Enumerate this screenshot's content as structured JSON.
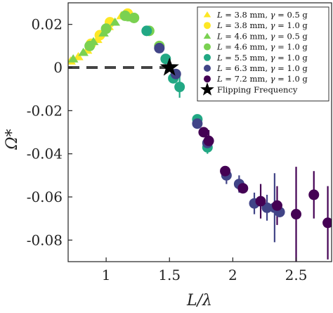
{
  "chart_data": {
    "type": "scatter",
    "title": "",
    "xlabel": "L/λ",
    "ylabel": "Ω*",
    "xlim": [
      0.7,
      2.78
    ],
    "ylim": [
      -0.09,
      0.03
    ],
    "xticks": [
      1,
      1.5,
      2,
      2.5
    ],
    "xtick_labels": [
      "1",
      "1.5",
      "2",
      "2.5"
    ],
    "yticks": [
      0.02,
      0,
      -0.02,
      -0.04,
      -0.06,
      -0.08
    ],
    "ytick_labels": [
      "0.02",
      "0",
      "-0.02",
      "-0.04",
      "-0.06",
      "-0.08"
    ],
    "grid": false,
    "legend_position": "top-right",
    "zero_line": {
      "y": 0,
      "x_end": 1.52,
      "style": "dashed"
    },
    "series": [
      {
        "name": "L = 3.8 mm, γ = 0.5 g",
        "legend": {
          "var": "L",
          "rest": " = 3.8 mm, ",
          "gvar": "γ",
          "grest": " = 0.5 g"
        },
        "color": "#fde725",
        "marker": "triangle",
        "points": [
          [
            0.72,
            0.003
          ],
          [
            0.78,
            0.005
          ],
          [
            0.85,
            0.008
          ],
          [
            0.93,
            0.013
          ],
          [
            1.02,
            0.019
          ],
          [
            1.12,
            0.024
          ]
        ]
      },
      {
        "name": "L = 3.8 mm, γ = 1.0 g",
        "legend": {
          "var": "L",
          "rest": " = 3.8 mm, ",
          "gvar": "γ",
          "grest": " = 1.0 g"
        },
        "color": "#fde725",
        "marker": "circle",
        "points": [
          [
            0.88,
            0.011
          ],
          [
            0.95,
            0.015
          ],
          [
            1.03,
            0.021
          ],
          [
            1.17,
            0.025
          ]
        ]
      },
      {
        "name": "L = 4.6 mm, γ = 0.5 g",
        "legend": {
          "var": "L",
          "rest": " = 4.6 mm, ",
          "gvar": "γ",
          "grest": " = 0.5 g"
        },
        "color": "#7ad151",
        "marker": "triangle",
        "points": [
          [
            0.74,
            0.004
          ],
          [
            0.82,
            0.007
          ],
          [
            0.9,
            0.012
          ],
          [
            0.98,
            0.016
          ],
          [
            1.07,
            0.021
          ],
          [
            1.2,
            0.023
          ]
        ]
      },
      {
        "name": "L = 4.6 mm, γ = 1.0 g",
        "legend": {
          "var": "L",
          "rest": " = 4.6 mm, ",
          "gvar": "γ",
          "grest": " = 1.0 g"
        },
        "color": "#7ad151",
        "marker": "circle",
        "points": [
          [
            0.87,
            0.01
          ],
          [
            1.0,
            0.018
          ],
          [
            1.15,
            0.024
          ],
          [
            1.22,
            0.023
          ],
          [
            1.34,
            0.017
          ],
          [
            1.42,
            0.01
          ]
        ]
      },
      {
        "name": "L = 5.5 mm, γ = 1.0 g",
        "legend": {
          "var": "L",
          "rest": " = 5.5 mm, ",
          "gvar": "γ",
          "grest": " = 1.0 g"
        },
        "color": "#22a884",
        "marker": "circle",
        "points": [
          [
            1.32,
            0.017
          ],
          [
            1.47,
            0.004
          ],
          [
            1.53,
            -0.005
          ],
          [
            1.58,
            -0.009
          ],
          [
            1.72,
            -0.024
          ],
          [
            1.8,
            -0.037
          ]
        ]
      },
      {
        "name": "L = 6.3 mm, γ = 1.0 g",
        "legend": {
          "var": "L",
          "rest": " = 6.3 mm, ",
          "gvar": "γ",
          "grest": " = 1.0 g"
        },
        "color": "#414487",
        "marker": "circle",
        "points": [
          [
            1.42,
            0.009
          ],
          [
            1.55,
            -0.003
          ],
          [
            1.72,
            -0.026
          ],
          [
            1.8,
            -0.035
          ],
          [
            1.95,
            -0.05
          ],
          [
            2.05,
            -0.054
          ],
          [
            2.17,
            -0.063
          ],
          [
            2.27,
            -0.065
          ],
          [
            2.33,
            -0.065
          ],
          [
            2.37,
            -0.067
          ]
        ]
      },
      {
        "name": "L = 7.2 mm, γ = 1.0 g",
        "legend": {
          "var": "L",
          "rest": " = 7.2 mm, ",
          "gvar": "γ",
          "grest": " = 1.0 g"
        },
        "color": "#440154",
        "marker": "circle",
        "points": [
          [
            1.77,
            -0.03
          ],
          [
            1.81,
            -0.034
          ],
          [
            1.94,
            -0.048
          ],
          [
            2.08,
            -0.056
          ],
          [
            2.22,
            -0.062
          ],
          [
            2.35,
            -0.064
          ],
          [
            2.5,
            -0.068
          ],
          [
            2.64,
            -0.059
          ],
          [
            2.75,
            -0.072
          ]
        ]
      },
      {
        "name": "Flipping Frequency",
        "legend": {
          "plain": "Flipping Frequency"
        },
        "color": "#000000",
        "marker": "star",
        "points": [
          [
            1.5,
            0.0
          ]
        ]
      }
    ],
    "error_bars": [
      {
        "x": 1.58,
        "y": -0.009,
        "err": 0.005,
        "color": "#22a884"
      },
      {
        "x": 1.8,
        "y": -0.037,
        "err": 0.003,
        "color": "#22a884"
      },
      {
        "x": 1.81,
        "y": -0.034,
        "err": 0.005,
        "color": "#440154"
      },
      {
        "x": 1.95,
        "y": -0.05,
        "err": 0.004,
        "color": "#414487"
      },
      {
        "x": 2.05,
        "y": -0.054,
        "err": 0.004,
        "color": "#414487"
      },
      {
        "x": 2.17,
        "y": -0.063,
        "err": 0.005,
        "color": "#414487"
      },
      {
        "x": 2.22,
        "y": -0.062,
        "err": 0.008,
        "color": "#440154"
      },
      {
        "x": 2.27,
        "y": -0.065,
        "err": 0.006,
        "color": "#414487"
      },
      {
        "x": 2.33,
        "y": -0.065,
        "err": 0.016,
        "color": "#414487"
      },
      {
        "x": 2.35,
        "y": -0.064,
        "err": 0.009,
        "color": "#440154"
      },
      {
        "x": 2.5,
        "y": -0.068,
        "err": 0.022,
        "color": "#440154"
      },
      {
        "x": 2.64,
        "y": -0.059,
        "err": 0.011,
        "color": "#440154"
      },
      {
        "x": 2.75,
        "y": -0.072,
        "err": 0.017,
        "color": "#440154"
      }
    ]
  }
}
